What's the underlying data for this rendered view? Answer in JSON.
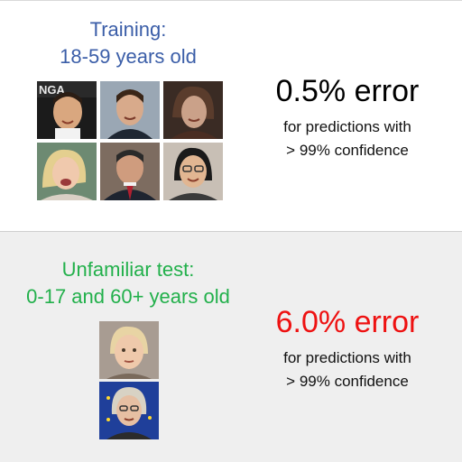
{
  "training": {
    "heading_line1": "Training:",
    "heading_line2": "18-59 years old",
    "error": "0.5% error",
    "sub_line1": "for predictions with",
    "sub_line2": "> 99% confidence",
    "heading_color": "#3b5ea8",
    "error_color": "#000000"
  },
  "test": {
    "heading_line1": "Unfamiliar test:",
    "heading_line2": "0-17 and 60+ years old",
    "error": "6.0% error",
    "sub_line1": "for predictions with",
    "sub_line2": "> 99% confidence",
    "heading_color": "#22b04b",
    "error_color": "#ee1111"
  },
  "faces": {
    "training": [
      "face-photo-1",
      "face-photo-2",
      "face-photo-3",
      "face-photo-4",
      "face-photo-5",
      "face-photo-6"
    ],
    "test": [
      "face-photo-child",
      "face-photo-elderly"
    ]
  }
}
